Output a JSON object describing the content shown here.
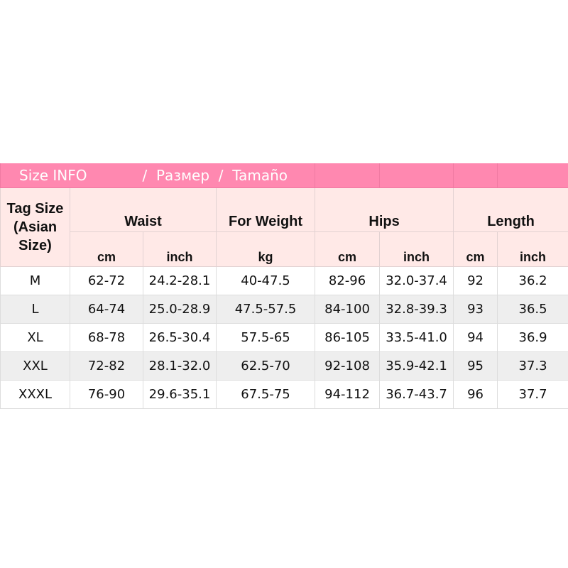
{
  "title": {
    "part1": "Size INFO",
    "sep1": "/",
    "part2": "Размер",
    "sep2": "/",
    "part3": "Tamaño"
  },
  "header": {
    "tag_size": "Tag Size (Asian Size)",
    "groups": [
      "Waist",
      "For Weight",
      "Hips",
      "Length"
    ],
    "units": [
      "cm",
      "inch",
      "kg",
      "cm",
      "inch",
      "cm",
      "inch"
    ]
  },
  "rows": [
    [
      "M",
      "62-72",
      "24.2-28.1",
      "40-47.5",
      "82-96",
      "32.0-37.4",
      "92",
      "36.2"
    ],
    [
      "L",
      "64-74",
      "25.0-28.9",
      "47.5-57.5",
      "84-100",
      "32.8-39.3",
      "93",
      "36.5"
    ],
    [
      "XL",
      "68-78",
      "26.5-30.4",
      "57.5-65",
      "86-105",
      "33.5-41.0",
      "94",
      "36.9"
    ],
    [
      "XXL",
      "72-82",
      "28.1-32.0",
      "62.5-70",
      "92-108",
      "35.9-42.1",
      "95",
      "37.3"
    ],
    [
      "XXXL",
      "76-90",
      "29.6-35.1",
      "67.5-75",
      "94-112",
      "36.7-43.7",
      "96",
      "37.7"
    ]
  ],
  "colors": {
    "title_bg": "#ff88b0",
    "header_bg": "#ffe9e7",
    "alt_row": "#eeeeee"
  }
}
